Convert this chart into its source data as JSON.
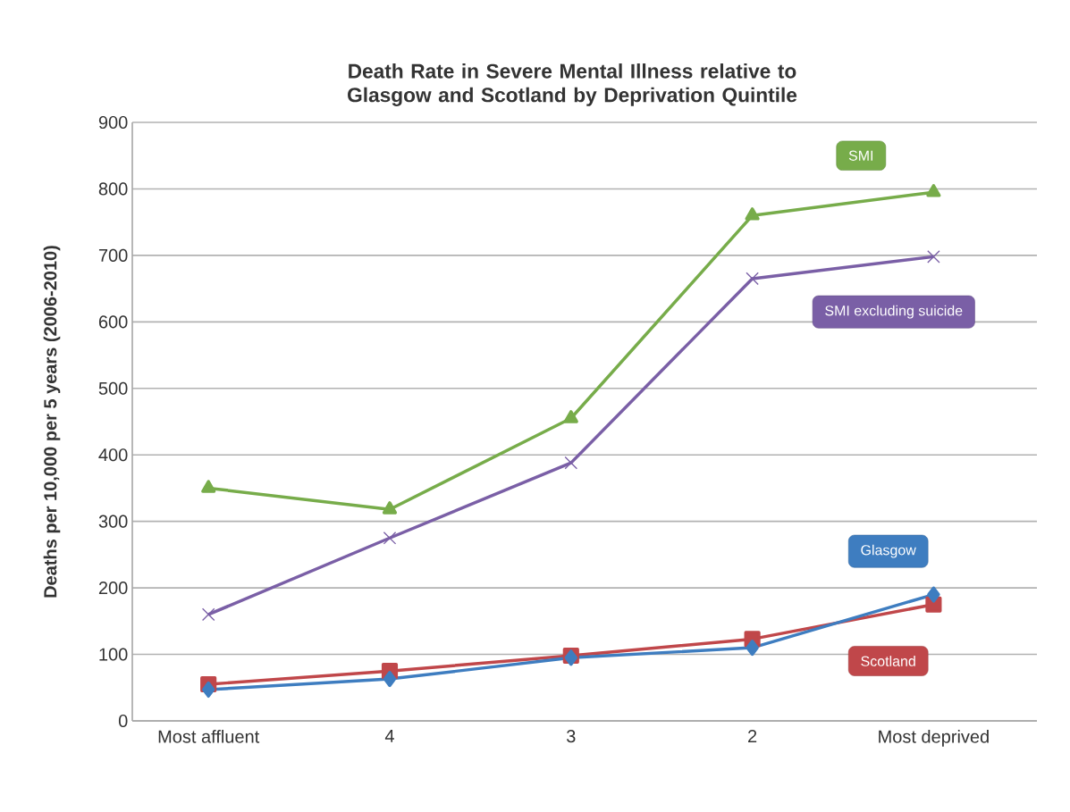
{
  "chart_data": {
    "type": "line",
    "title": "Death Rate in Severe Mental Illness relative to Glasgow and Scotland by Deprivation Quintile",
    "ylabel": "Deaths per 10,000 per 5 years (2006-2010)",
    "categories": [
      "Most affluent",
      "4",
      "3",
      "2",
      "Most deprived"
    ],
    "ylim": [
      0,
      900
    ],
    "yticks": [
      0,
      100,
      200,
      300,
      400,
      500,
      600,
      700,
      800,
      900
    ],
    "grid": "y",
    "legend": false,
    "series": [
      {
        "name": "SMI",
        "color": "#77ac4a",
        "marker": "triangle",
        "values": [
          350,
          318,
          455,
          760,
          795
        ]
      },
      {
        "name": "SMI excluding suicide",
        "color": "#7a5fa6",
        "marker": "cross",
        "values": [
          160,
          275,
          388,
          665,
          698
        ]
      },
      {
        "name": "Glasgow",
        "color": "#3e7dc0",
        "marker": "diamond",
        "values": [
          47,
          63,
          95,
          110,
          190
        ]
      },
      {
        "name": "Scotland",
        "color": "#c0474a",
        "marker": "square",
        "values": [
          55,
          75,
          98,
          123,
          175
        ]
      }
    ]
  }
}
